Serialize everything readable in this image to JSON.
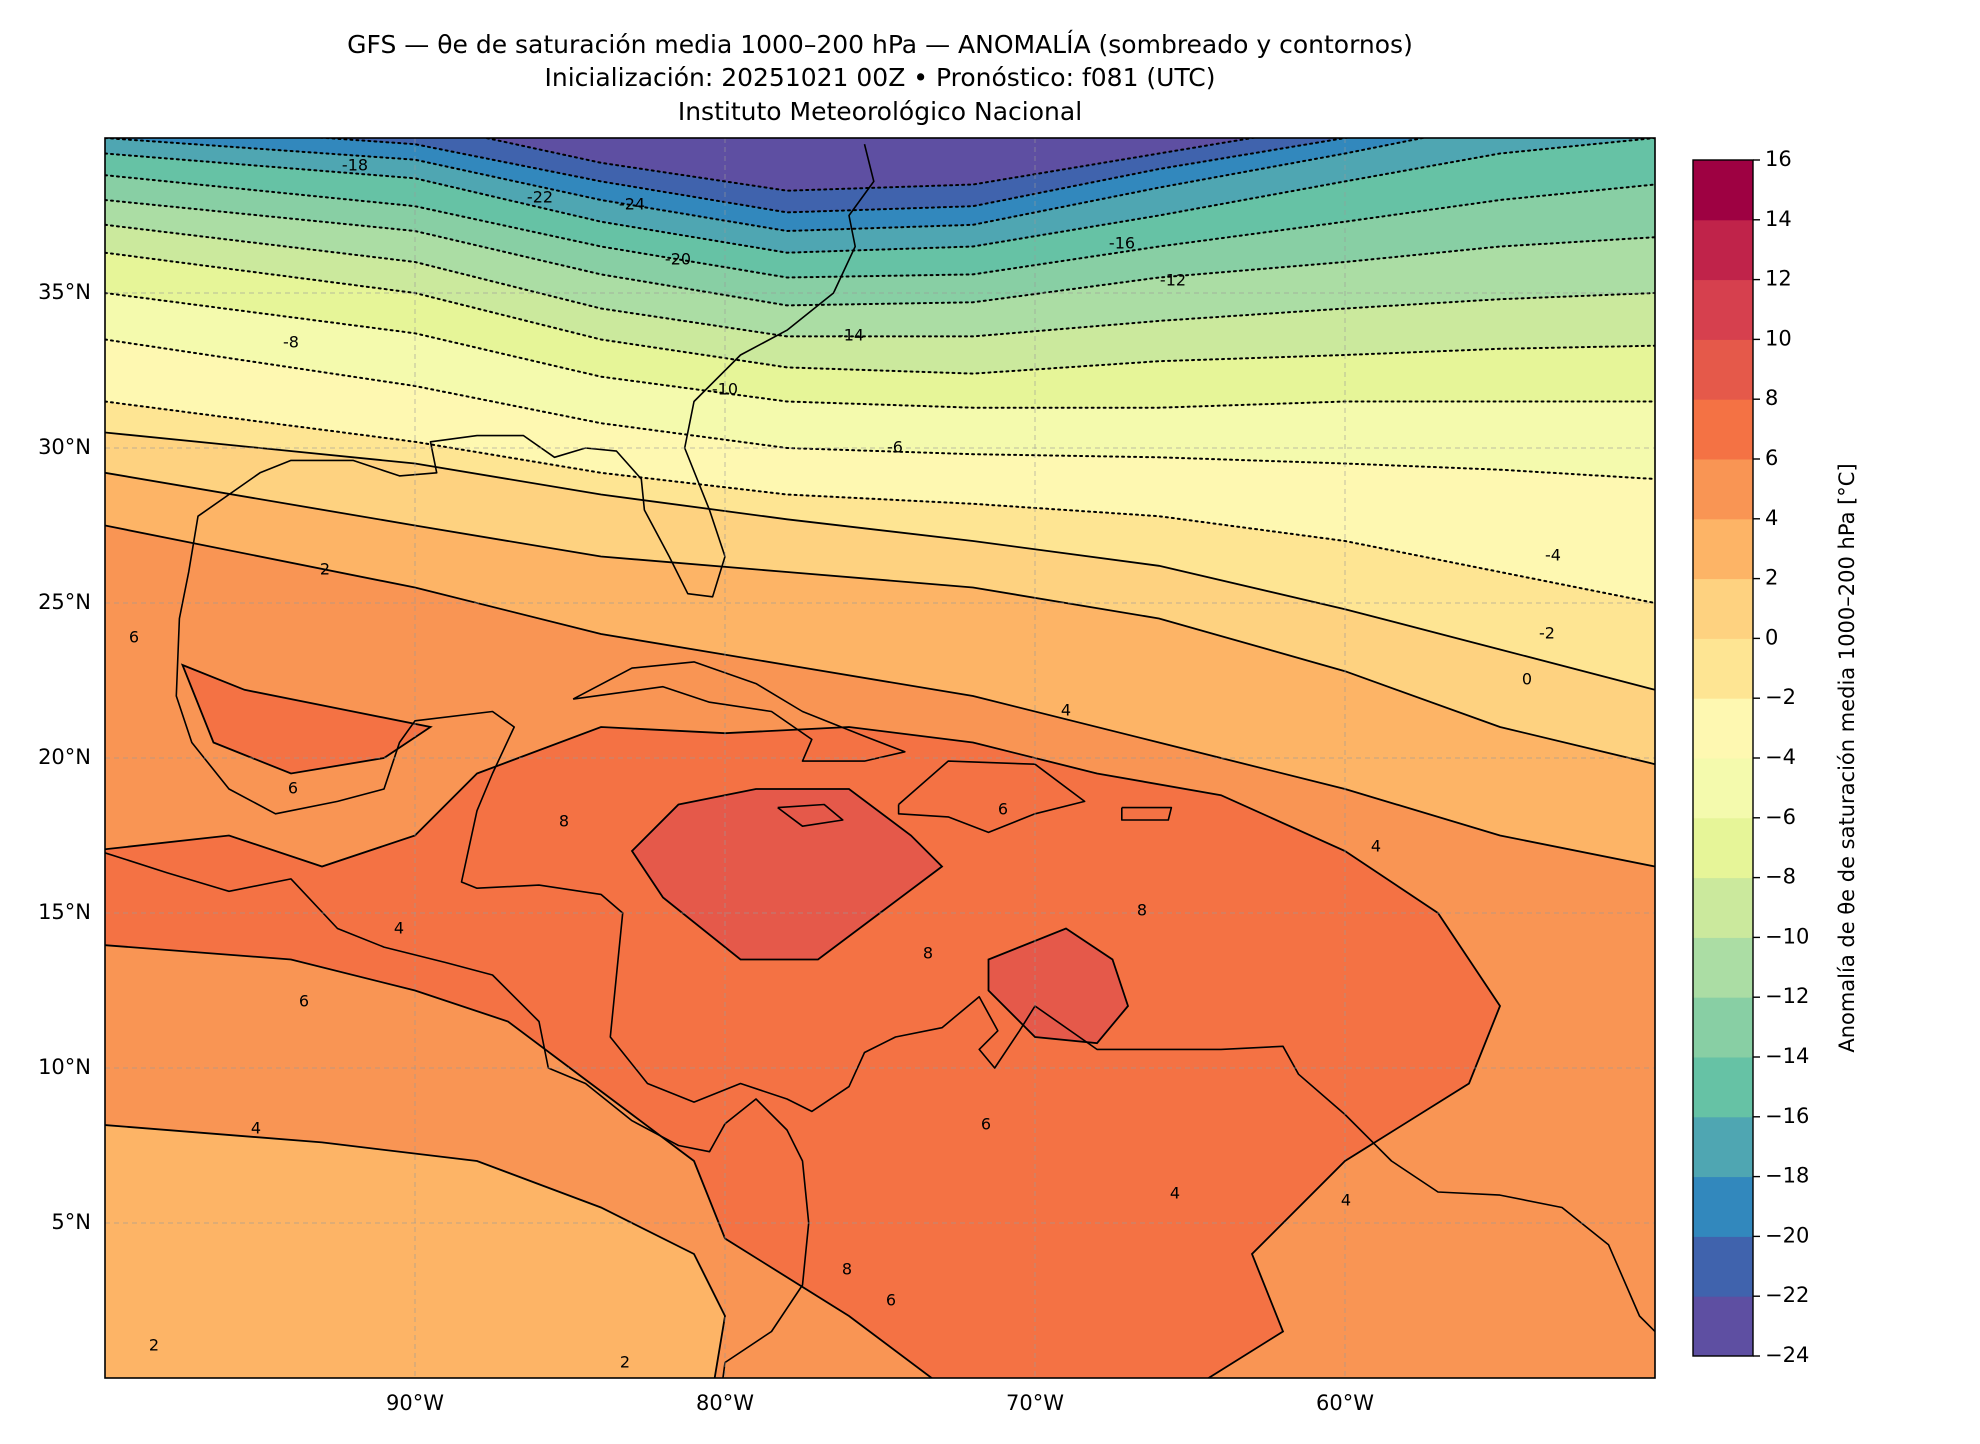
{
  "title": {
    "line1": "GFS — θe de saturación media 1000–200 hPa — ANOMALÍA (sombreado y contornos)",
    "line2": "Inicialización: 20251021 00Z   •   Pronóstico: f081 (UTC)",
    "line3": "Instituto Meteorológico Nacional"
  },
  "map": {
    "xlim": [
      -100,
      -50
    ],
    "ylim": [
      0,
      40
    ],
    "xticks": [
      {
        "value": -90,
        "label": "90°W"
      },
      {
        "value": -80,
        "label": "80°W"
      },
      {
        "value": -70,
        "label": "70°W"
      },
      {
        "value": -60,
        "label": "60°W"
      }
    ],
    "yticks": [
      {
        "value": 35,
        "label": "35°N"
      },
      {
        "value": 30,
        "label": "30°N"
      },
      {
        "value": 25,
        "label": "25°N"
      },
      {
        "value": 20,
        "label": "20°N"
      },
      {
        "value": 15,
        "label": "15°N"
      },
      {
        "value": 10,
        "label": "10°N"
      },
      {
        "value": 5,
        "label": "5°N"
      }
    ],
    "grid": true
  },
  "colorbar": {
    "label": "Anomalía de θe de saturación media 1000–200 hPa [°C]",
    "ticks": [
      {
        "value": -24,
        "label": "−24"
      },
      {
        "value": -22,
        "label": "−22"
      },
      {
        "value": -20,
        "label": "−20"
      },
      {
        "value": -18,
        "label": "−18"
      },
      {
        "value": -16,
        "label": "−16"
      },
      {
        "value": -14,
        "label": "−14"
      },
      {
        "value": -12,
        "label": "−12"
      },
      {
        "value": -10,
        "label": "−10"
      },
      {
        "value": -8,
        "label": "−8"
      },
      {
        "value": -6,
        "label": "−6"
      },
      {
        "value": -4,
        "label": "−4"
      },
      {
        "value": -2,
        "label": "−2"
      },
      0,
      2,
      4,
      6,
      8,
      10,
      12,
      14,
      16
    ],
    "colors": [
      "#5e4fa2",
      "#4063ad",
      "#3288bd",
      "#4fa6b2",
      "#66c2a5",
      "#88cfa4",
      "#abdda4",
      "#cbe99d",
      "#e6f598",
      "#f4faad",
      "#fef8b1",
      "#fee593",
      "#fed280",
      "#fdb466",
      "#f99554",
      "#f47244",
      "#e5594a",
      "#d6404e",
      "#c0234a",
      "#9e0142"
    ]
  },
  "contour_labels": [
    "-18",
    "-22",
    "-24",
    "-20",
    "-16",
    "-12",
    "-14",
    "-8",
    "-10",
    "-6",
    "-4",
    "-2",
    "0",
    "2",
    "6",
    "4",
    "6",
    "4",
    "6",
    "4",
    "8",
    "8",
    "8",
    "6",
    "4",
    "6",
    "4",
    "4",
    "2",
    "2",
    "6",
    "8"
  ]
}
